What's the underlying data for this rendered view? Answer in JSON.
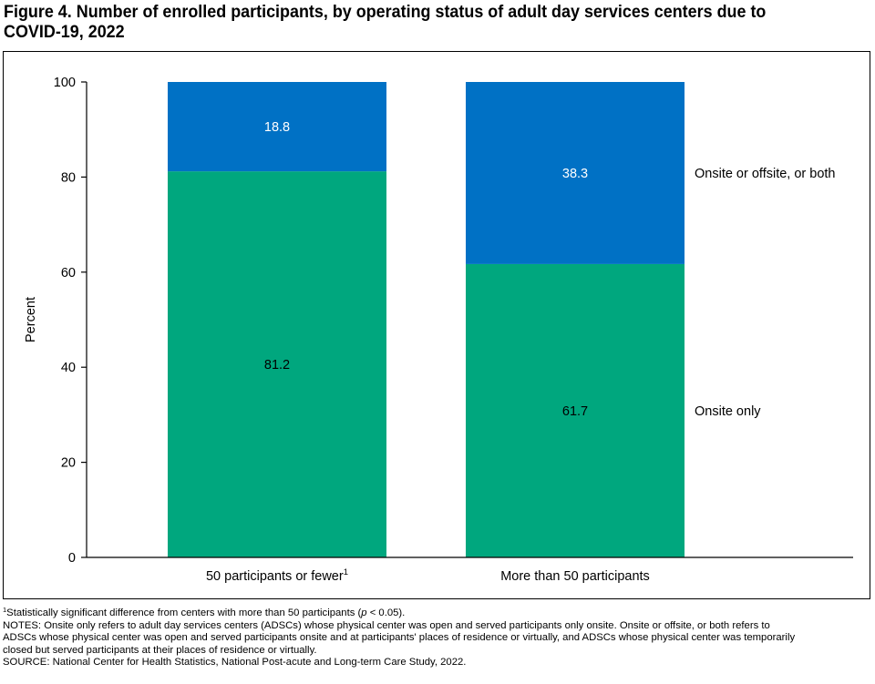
{
  "title_line1": "Figure 4. Number of enrolled participants, by operating status of adult day services centers due to",
  "title_line2": "COVID-19, 2022",
  "chart_data": {
    "type": "bar",
    "stacked": true,
    "categories": [
      "50 participants or fewer",
      "More than 50 participants"
    ],
    "category_superscripts": [
      "1",
      ""
    ],
    "series": [
      {
        "name": "Onsite only",
        "values": [
          81.2,
          61.7
        ],
        "color": "#00a77e"
      },
      {
        "name": "Onsite or offsite, or both",
        "values": [
          18.8,
          38.3
        ],
        "color": "#0071c5"
      }
    ],
    "data_labels": [
      [
        "81.2",
        "61.7"
      ],
      [
        "18.8",
        "38.3"
      ]
    ],
    "ylabel": "Percent",
    "ylim": [
      0,
      100
    ],
    "yticks": [
      0,
      20,
      40,
      60,
      80,
      100
    ],
    "grid": false,
    "legend_placement": "right, beside each segment of the last bar"
  },
  "footnote": {
    "marker": "1",
    "text_before": "Statistically significant difference from centers with more than 50 participants (",
    "italic": "p",
    "text_after": " < 0.05)."
  },
  "notes_lines": [
    "NOTES: Onsite only refers to adult day services centers (ADSCs) whose physical center was open and served participants only onsite. Onsite or offsite, or both refers to",
    "ADSCs whose physical center was open and served participants onsite and at participants' places of residence or virtually, and ADSCs whose physical center was temporarily",
    "closed but served participants at their places of residence or virtually."
  ],
  "source": "SOURCE: National Center for Health Statistics, National Post-acute and Long-term Care Study, 2022."
}
